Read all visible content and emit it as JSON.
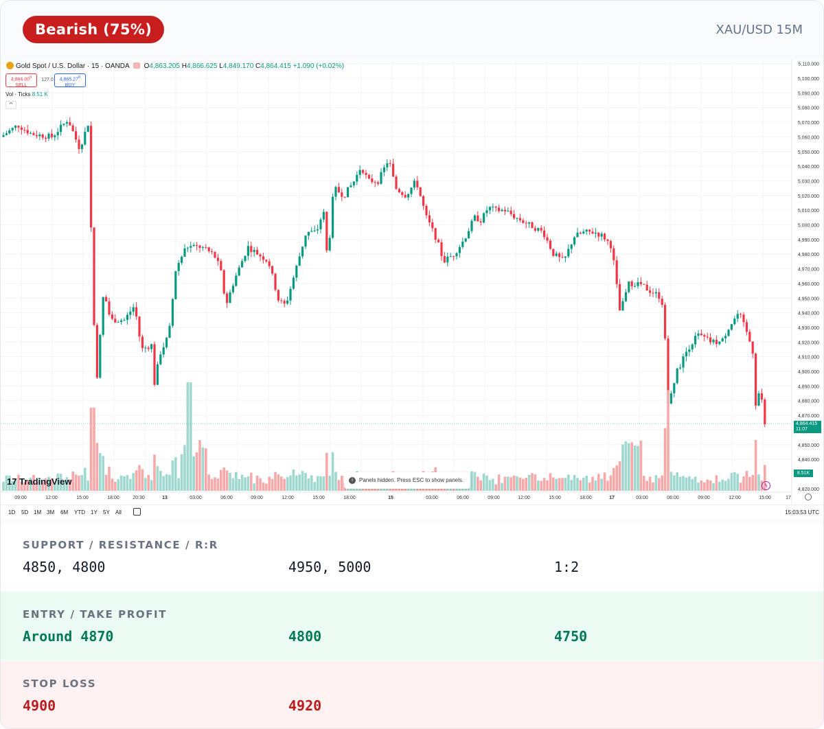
{
  "header": {
    "sentiment": "Bearish (75%)",
    "pair": "XAU/USD 15M"
  },
  "chart": {
    "legend": {
      "symbol": "Gold Spot / U.S. Dollar · 15 · OANDA",
      "o": "4,863.205",
      "h": "4,866.625",
      "l": "4,849.170",
      "c": "4,864.415",
      "change": "+1.090 (+0.02%)"
    },
    "trade": {
      "sell_price": "4,864.00",
      "sell_sup": "0",
      "sell_label": "SELL",
      "spread": "127.0",
      "buy_price": "4,865.27",
      "buy_sup": "0",
      "buy_label": "BUY"
    },
    "volume_label": "Vol · Ticks",
    "volume_value": "8.51 K",
    "last_price": "4,864.415",
    "countdown": "11:07",
    "last_volume": "8.51K",
    "logo": "TradingView",
    "hint": "Panels hidden. Press ESC to show panels.",
    "ranges": [
      "1D",
      "5D",
      "1M",
      "3M",
      "6M",
      "YTD",
      "1Y",
      "5Y",
      "All"
    ],
    "clock": "15:03:53 UTC",
    "price_axis": [
      "5,110.000",
      "5,100.000",
      "5,090.000",
      "5,080.000",
      "5,070.000",
      "5,060.000",
      "5,050.000",
      "5,040.000",
      "5,030.000",
      "5,020.000",
      "5,010.000",
      "5,000.000",
      "4,990.000",
      "4,980.000",
      "4,970.000",
      "4,960.000",
      "4,950.000",
      "4,940.000",
      "4,930.000",
      "4,920.000",
      "4,910.000",
      "4,900.000",
      "4,890.000",
      "4,880.000",
      "4,870.000",
      "4,860.000",
      "4,850.000",
      "4,840.000",
      "4,820.000"
    ],
    "time_axis": [
      "09:00",
      "12:00",
      "15:00",
      "18:00",
      "20:30",
      "13",
      "03:00",
      "06:00",
      "09:00",
      "12:00",
      "15:00",
      "18:00",
      "15",
      "03:00",
      "06:00",
      "09:00",
      "12:00",
      "15:00",
      "18:00",
      "17",
      "03:00",
      "06:00",
      "09:00",
      "12:00",
      "15:00",
      "17:"
    ],
    "colors": {
      "up": "#089981",
      "down": "#f23645",
      "up_vol": "#9fd8cf",
      "down_vol": "#f7a9a9"
    }
  },
  "levels": {
    "label": "SUPPORT / RESISTANCE / R:R",
    "support": "4850, 4800",
    "resistance": "4950, 5000",
    "rr": "1:2"
  },
  "entry": {
    "label": "ENTRY / TAKE PROFIT",
    "entry": "Around 4870",
    "tp1": "4800",
    "tp2": "4750"
  },
  "stop": {
    "label": "STOP LOSS",
    "sl1": "4900",
    "sl2": "4920"
  }
}
